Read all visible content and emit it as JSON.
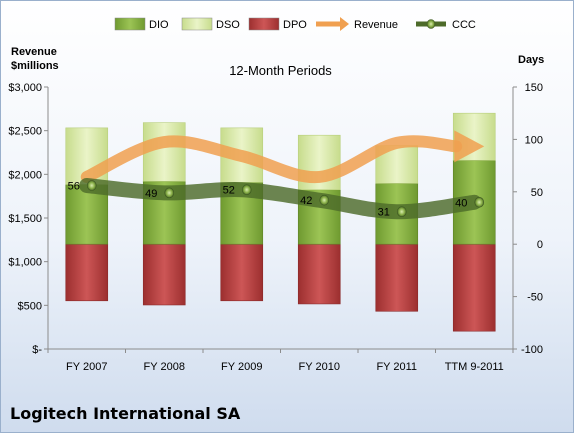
{
  "company": "Logitech International SA",
  "chart_data": {
    "type": "bar",
    "title": "12-Month Periods",
    "categories": [
      "FY 2007",
      "FY 2008",
      "FY 2009",
      "FY 2010",
      "FY 2011",
      "TTM 9-2011"
    ],
    "left_axis": {
      "label_line1": "Revenue",
      "label_line2": "$millions",
      "min": 0,
      "max": 3000,
      "step": 500,
      "ticks": [
        "$-",
        "$500",
        "$1,000",
        "$1,500",
        "$2,000",
        "$2,500",
        "$3,000"
      ]
    },
    "right_axis": {
      "label": "Days",
      "min": -100,
      "max": 150,
      "step": 50,
      "ticks": [
        "-100",
        "-50",
        "0",
        "50",
        "100",
        "150"
      ]
    },
    "legend": [
      "DIO",
      "DSO",
      "DPO",
      "Revenue",
      "CCC"
    ],
    "legend_position": "top",
    "colors": {
      "DIO": "#7ea83c",
      "DSO": "#d6e6a6",
      "DPO": "#b73c3c",
      "Revenue": "#f0a050",
      "CCC": "#4d6b2a"
    },
    "series": [
      {
        "name": "DIO",
        "axis": "right",
        "stack": "positive",
        "values": [
          57,
          60,
          59,
          52,
          58,
          80
        ]
      },
      {
        "name": "DSO",
        "axis": "right",
        "stack": "positive",
        "values": [
          54,
          56,
          52,
          52,
          36,
          45
        ]
      },
      {
        "name": "DPO",
        "axis": "right",
        "stack": "negative",
        "values": [
          -54,
          -58,
          -54,
          -57,
          -64,
          -83
        ]
      },
      {
        "name": "Revenue",
        "axis": "left",
        "type": "line",
        "values": [
          1970,
          2370,
          2210,
          1970,
          2360,
          2320
        ]
      },
      {
        "name": "CCC",
        "axis": "right",
        "type": "line",
        "values": [
          56,
          49,
          52,
          42,
          31,
          40
        ],
        "labels": [
          "56",
          "49",
          "52",
          "42",
          "31",
          "40"
        ]
      }
    ]
  }
}
